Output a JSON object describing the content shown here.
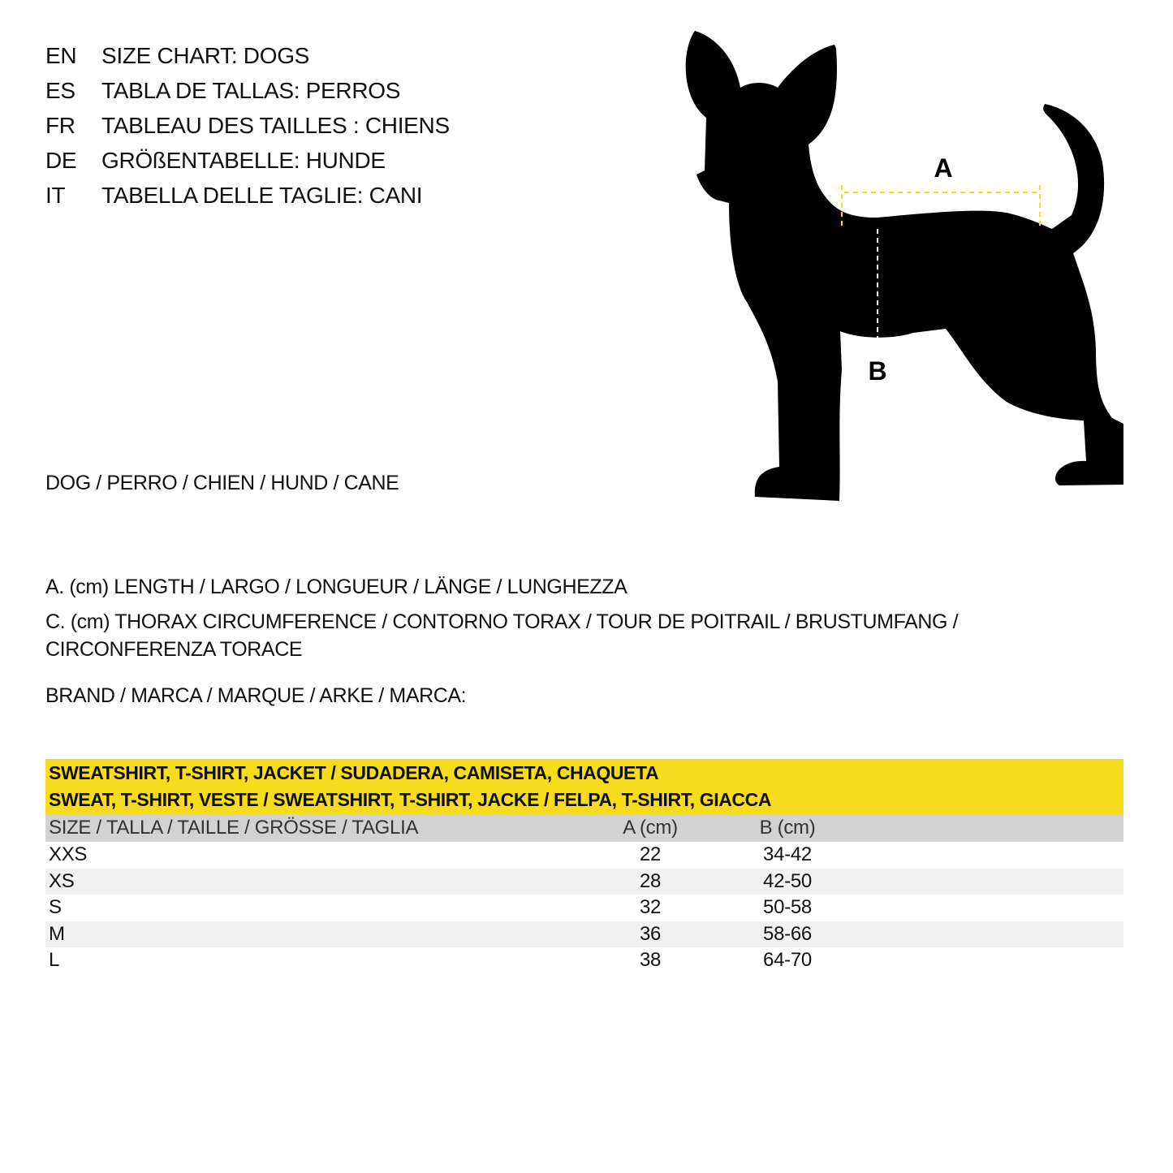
{
  "titles": [
    {
      "code": "EN",
      "text": "SIZE CHART: DOGS"
    },
    {
      "code": "ES",
      "text": "TABLA DE TALLAS: PERROS"
    },
    {
      "code": "FR",
      "text": "TABLEAU DES TAILLES : CHIENS"
    },
    {
      "code": "DE",
      "text": "GRÖßENTABELLE: HUNDE"
    },
    {
      "code": "IT",
      "text": "TABELLA DELLE TAGLIE: CANI"
    }
  ],
  "animal_label": "DOG / PERRO / CHIEN / HUND / CANE",
  "legend": {
    "a": "A. (cm) LENGTH / LARGO / LONGUEUR / LÄNGE / LUNGHEZZA",
    "c": "C. (cm) THORAX CIRCUMFERENCE / CONTORNO TORAX / TOUR DE POITRAIL / BRUSTUMFANG / CIRCONFERENZA TORACE"
  },
  "brand_label": "BRAND / MARCA / MARQUE / ARKE / MARCA:",
  "diagram": {
    "label_a": "A",
    "label_b": "B",
    "accent_color": "#f6dc1c",
    "silhouette_color": "#000000"
  },
  "table": {
    "title_line1": "SWEATSHIRT, T-SHIRT, JACKET / SUDADERA, CAMISETA, CHAQUETA",
    "title_line2": "SWEAT, T-SHIRT, VESTE / SWEATSHIRT, T-SHIRT, JACKE / FELPA, T-SHIRT, GIACCA",
    "headers": [
      "SIZE / TALLA / TAILLE / GRÖSSE / TAGLIA",
      "A (cm)",
      "B (cm)"
    ],
    "rows": [
      [
        "XXS",
        "22",
        "34-42"
      ],
      [
        "XS",
        "28",
        "42-50"
      ],
      [
        "S",
        "32",
        "50-58"
      ],
      [
        "M",
        "36",
        "58-66"
      ],
      [
        "L",
        "38",
        "64-70"
      ]
    ],
    "header_color": "#f6dc1c"
  }
}
